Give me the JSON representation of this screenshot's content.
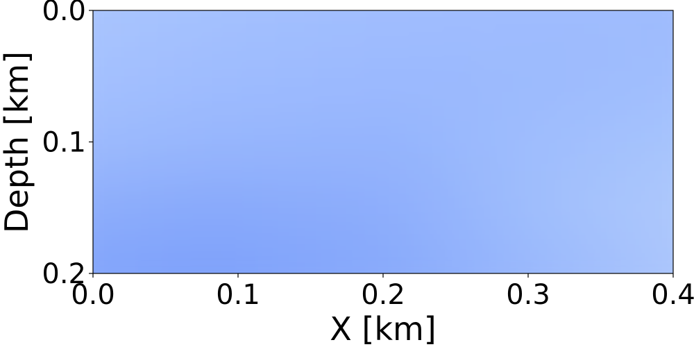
{
  "chart_data": {
    "type": "heatmap",
    "title": "",
    "xlabel": "X [km]",
    "ylabel": "Depth [km]",
    "xlim": [
      0.0,
      0.4
    ],
    "ylim": [
      0.2,
      0.0
    ],
    "x_ticks": [
      {
        "value": 0.0,
        "label": "0.0"
      },
      {
        "value": 0.1,
        "label": "0.1"
      },
      {
        "value": 0.2,
        "label": "0.2"
      },
      {
        "value": 0.3,
        "label": "0.3"
      },
      {
        "value": 0.4,
        "label": "0.4"
      }
    ],
    "y_ticks": [
      {
        "value": 0.0,
        "label": "0.0"
      },
      {
        "value": 0.1,
        "label": "0.1"
      },
      {
        "value": 0.2,
        "label": "0.2"
      }
    ],
    "grid": false,
    "legend": "none",
    "colormap_colors": [
      "#7b9ff9",
      "#a3c2fe",
      "#b5cdfa"
    ],
    "color_field": {
      "x": [
        0.0,
        0.1,
        0.2,
        0.3,
        0.4
      ],
      "depth": [
        0.0,
        0.05,
        0.1,
        0.15,
        0.2
      ],
      "colors": [
        [
          "#abc6fd",
          "#a4c1fe",
          "#a0bdfe",
          "#9fbcfe",
          "#9ebbfd"
        ],
        [
          "#a7c3fe",
          "#9fbcfe",
          "#9bb9fe",
          "#9cbafd",
          "#a2bffd"
        ],
        [
          "#9fbcfd",
          "#97b6fd",
          "#94b4fd",
          "#a0befd",
          "#a9c6fd"
        ],
        [
          "#8faffc",
          "#88a9fb",
          "#8dadfc",
          "#a2c0fd",
          "#b2cbfb"
        ],
        [
          "#84a6fb",
          "#7ea1fa",
          "#87a9fb",
          "#9cbafd",
          "#b1cafc"
        ]
      ]
    }
  }
}
